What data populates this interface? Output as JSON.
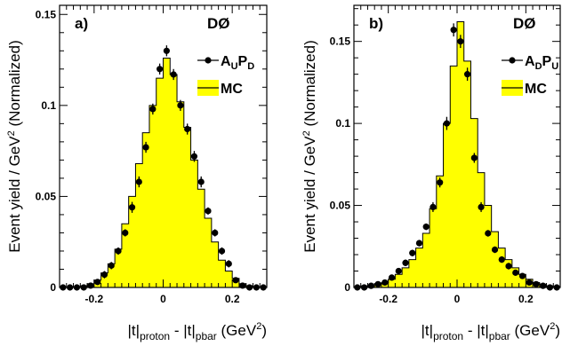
{
  "chart_data": [
    {
      "type": "line",
      "panel_label": "a)",
      "experiment": "DØ",
      "xlabel": "|t|proton - |t|pbar (GeV2)",
      "ylabel": "Event yield / GeV2 (Normalized)",
      "xlim": [
        -0.3,
        0.3
      ],
      "ylim": [
        0,
        0.155
      ],
      "x_ticks": [
        -0.2,
        0,
        0.2
      ],
      "x_tick_labels": [
        "-0.2",
        "0",
        "0.2"
      ],
      "y_ticks": [
        0,
        0.05,
        0.1,
        0.15
      ],
      "y_tick_labels": [
        "0",
        "0.05",
        "0.1",
        "0.15"
      ],
      "legend": {
        "data_label": {
          "base": "A",
          "sub1": "U",
          "mid": "P",
          "sub2": "D"
        },
        "mc_label": "MC",
        "position": "top-right"
      },
      "hist_edges": [
        -0.3,
        -0.28,
        -0.26,
        -0.24,
        -0.22,
        -0.2,
        -0.18,
        -0.16,
        -0.14,
        -0.12,
        -0.1,
        -0.08,
        -0.06,
        -0.04,
        -0.02,
        0,
        0.02,
        0.04,
        0.06,
        0.08,
        0.1,
        0.12,
        0.14,
        0.16,
        0.18,
        0.2,
        0.22,
        0.24,
        0.26,
        0.28,
        0.3
      ],
      "hist_values": [
        0,
        0,
        0,
        0.001,
        0.002,
        0.004,
        0.008,
        0.013,
        0.021,
        0.035,
        0.05,
        0.068,
        0.085,
        0.1,
        0.115,
        0.126,
        0.117,
        0.102,
        0.088,
        0.07,
        0.054,
        0.038,
        0.025,
        0.015,
        0.009,
        0.005,
        0.002,
        0.001,
        0,
        0
      ],
      "points": {
        "x": [
          -0.29,
          -0.27,
          -0.25,
          -0.23,
          -0.21,
          -0.19,
          -0.17,
          -0.15,
          -0.13,
          -0.11,
          -0.09,
          -0.07,
          -0.05,
          -0.03,
          -0.01,
          0.01,
          0.03,
          0.05,
          0.07,
          0.09,
          0.11,
          0.13,
          0.15,
          0.17,
          0.19,
          0.21,
          0.23,
          0.25,
          0.27,
          0.29
        ],
        "y": [
          0,
          0,
          0,
          0,
          0.001,
          0.003,
          0.007,
          0.012,
          0.02,
          0.03,
          0.044,
          0.058,
          0.077,
          0.098,
          0.12,
          0.13,
          0.117,
          0.1,
          0.087,
          0.072,
          0.058,
          0.042,
          0.03,
          0.02,
          0.013,
          0.004,
          0.001,
          0,
          0,
          0
        ],
        "err": [
          0,
          0,
          0,
          0,
          0.001,
          0.001,
          0.002,
          0.002,
          0.002,
          0.002,
          0.003,
          0.003,
          0.003,
          0.003,
          0.003,
          0.003,
          0.003,
          0.003,
          0.003,
          0.003,
          0.003,
          0.002,
          0.002,
          0.002,
          0.002,
          0.001,
          0.001,
          0,
          0,
          0
        ]
      }
    },
    {
      "type": "line",
      "panel_label": "b)",
      "experiment": "DØ",
      "xlabel": "|t|proton - |t|pbar (GeV2)",
      "ylabel": "Event yield / GeV2 (Normalized)",
      "xlim": [
        -0.3,
        0.3
      ],
      "ylim": [
        0,
        0.172
      ],
      "x_ticks": [
        -0.2,
        0,
        0.2
      ],
      "x_tick_labels": [
        "-0.2",
        "0",
        "0.2"
      ],
      "y_ticks": [
        0,
        0.05,
        0.1,
        0.15
      ],
      "y_tick_labels": [
        "0",
        "0.05",
        "0.1",
        "0.15"
      ],
      "legend": {
        "data_label": {
          "base": "A",
          "sub1": "D",
          "mid": "P",
          "sub2": "U"
        },
        "mc_label": "MC",
        "position": "top-right"
      },
      "hist_edges": [
        -0.3,
        -0.28,
        -0.26,
        -0.24,
        -0.22,
        -0.2,
        -0.18,
        -0.16,
        -0.14,
        -0.12,
        -0.1,
        -0.08,
        -0.06,
        -0.04,
        -0.02,
        0,
        0.02,
        0.04,
        0.06,
        0.08,
        0.1,
        0.12,
        0.14,
        0.16,
        0.18,
        0.2,
        0.22,
        0.24,
        0.26,
        0.28,
        0.3
      ],
      "hist_values": [
        0,
        0.001,
        0.001,
        0.002,
        0.003,
        0.005,
        0.008,
        0.012,
        0.017,
        0.024,
        0.033,
        0.048,
        0.068,
        0.1,
        0.135,
        0.162,
        0.138,
        0.103,
        0.07,
        0.05,
        0.034,
        0.024,
        0.017,
        0.012,
        0.008,
        0.005,
        0.003,
        0.002,
        0.001,
        0
      ],
      "points": {
        "x": [
          -0.29,
          -0.27,
          -0.25,
          -0.23,
          -0.21,
          -0.19,
          -0.17,
          -0.15,
          -0.13,
          -0.11,
          -0.09,
          -0.07,
          -0.05,
          -0.03,
          -0.01,
          0.01,
          0.03,
          0.05,
          0.07,
          0.09,
          0.11,
          0.13,
          0.15,
          0.17,
          0.19,
          0.21,
          0.23,
          0.25,
          0.27,
          0.29
        ],
        "y": [
          0,
          0,
          0.001,
          0.002,
          0.003,
          0.006,
          0.01,
          0.015,
          0.021,
          0.027,
          0.037,
          0.049,
          0.064,
          0.1,
          0.157,
          0.15,
          0.13,
          0.079,
          0.049,
          0.033,
          0.023,
          0.017,
          0.013,
          0.009,
          0.007,
          0.003,
          0.002,
          0.001,
          0,
          0
        ],
        "err": [
          0,
          0,
          0.001,
          0.001,
          0.001,
          0.001,
          0.001,
          0.002,
          0.002,
          0.002,
          0.002,
          0.003,
          0.003,
          0.004,
          0.004,
          0.004,
          0.004,
          0.003,
          0.003,
          0.002,
          0.002,
          0.002,
          0.002,
          0.001,
          0.001,
          0.001,
          0.001,
          0.001,
          0,
          0
        ]
      }
    }
  ]
}
